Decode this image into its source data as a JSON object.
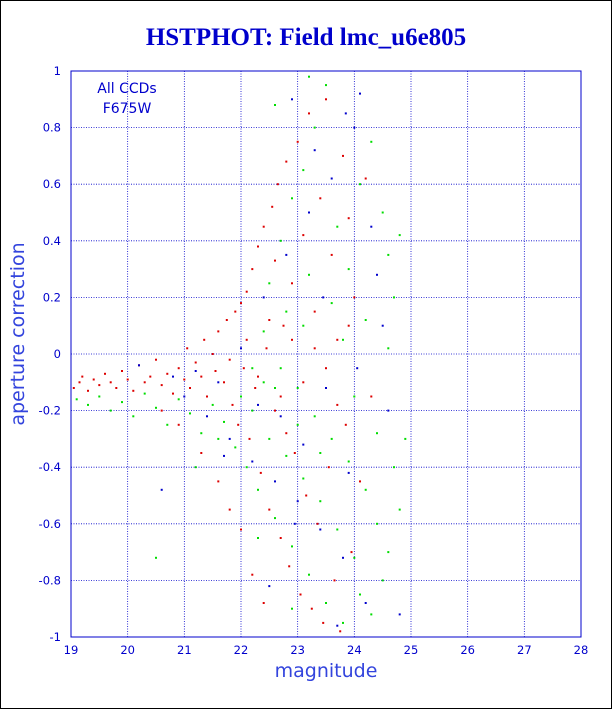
{
  "chart_data": {
    "type": "scatter",
    "title": "HSTPHOT: Field lmc_u6e805",
    "xlabel": "magnitude",
    "ylabel": "aperture correction",
    "xlim": [
      19,
      28
    ],
    "ylim": [
      -1,
      1
    ],
    "xticks": [
      19,
      20,
      21,
      22,
      23,
      24,
      25,
      26,
      27,
      28
    ],
    "yticks": [
      -1,
      -0.8,
      -0.6,
      -0.4,
      -0.2,
      0,
      0.2,
      0.4,
      0.6,
      0.8,
      1
    ],
    "ytick_labels": [
      "-1",
      "-0.8",
      "-0.6",
      "-0.4",
      "-0.2",
      "0",
      "0.2",
      "0.4",
      "0.6",
      "0.8",
      "1"
    ],
    "grid": true,
    "annotations": [
      "All CCDs",
      "F675W"
    ],
    "series": [
      {
        "color": "#dd0000",
        "points": [
          [
            19.05,
            -0.12
          ],
          [
            19.15,
            -0.1
          ],
          [
            19.2,
            -0.08
          ],
          [
            19.3,
            -0.13
          ],
          [
            19.4,
            -0.09
          ],
          [
            19.5,
            -0.11
          ],
          [
            19.6,
            -0.07
          ],
          [
            19.7,
            -0.1
          ],
          [
            19.8,
            -0.12
          ],
          [
            19.9,
            -0.06
          ],
          [
            20.0,
            -0.09
          ],
          [
            20.1,
            -0.13
          ],
          [
            20.2,
            -0.04
          ],
          [
            20.3,
            -0.1
          ],
          [
            20.4,
            -0.08
          ],
          [
            20.5,
            -0.02
          ],
          [
            20.6,
            -0.11
          ],
          [
            20.7,
            -0.07
          ],
          [
            20.8,
            -0.14
          ],
          [
            20.9,
            -0.05
          ],
          [
            21.0,
            -0.09
          ],
          [
            21.05,
            0.02
          ],
          [
            21.1,
            -0.12
          ],
          [
            21.2,
            -0.03
          ],
          [
            21.3,
            -0.08
          ],
          [
            21.35,
            0.05
          ],
          [
            21.4,
            -0.15
          ],
          [
            21.5,
            0.0
          ],
          [
            21.55,
            -0.06
          ],
          [
            21.6,
            0.08
          ],
          [
            21.7,
            -0.1
          ],
          [
            21.75,
            0.12
          ],
          [
            21.8,
            -0.02
          ],
          [
            21.85,
            -0.18
          ],
          [
            21.9,
            0.15
          ],
          [
            21.95,
            -0.25
          ],
          [
            22.0,
            0.18
          ],
          [
            22.05,
            -0.05
          ],
          [
            22.1,
            0.22
          ],
          [
            22.15,
            -0.3
          ],
          [
            22.2,
            0.3
          ],
          [
            22.25,
            -0.12
          ],
          [
            22.3,
            0.38
          ],
          [
            22.35,
            -0.42
          ],
          [
            22.4,
            0.45
          ],
          [
            22.45,
            0.02
          ],
          [
            22.5,
            -0.55
          ],
          [
            22.55,
            0.52
          ],
          [
            22.6,
            -0.2
          ],
          [
            22.65,
            0.6
          ],
          [
            22.7,
            -0.65
          ],
          [
            22.75,
            0.1
          ],
          [
            22.8,
            0.68
          ],
          [
            22.85,
            -0.75
          ],
          [
            22.9,
            0.25
          ],
          [
            22.95,
            -0.35
          ],
          [
            23.0,
            0.75
          ],
          [
            23.05,
            -0.85
          ],
          [
            23.1,
            0.42
          ],
          [
            23.15,
            -0.5
          ],
          [
            23.2,
            0.85
          ],
          [
            23.25,
            -0.9
          ],
          [
            23.3,
            0.15
          ],
          [
            23.35,
            -0.6
          ],
          [
            23.4,
            0.55
          ],
          [
            23.45,
            -0.95
          ],
          [
            23.5,
            0.9
          ],
          [
            23.55,
            -0.4
          ],
          [
            23.6,
            0.35
          ],
          [
            23.65,
            -0.8
          ],
          [
            23.7,
            0.05
          ],
          [
            23.75,
            -0.98
          ],
          [
            23.8,
            0.7
          ],
          [
            23.85,
            -0.25
          ],
          [
            23.9,
            0.48
          ],
          [
            23.95,
            -0.7
          ],
          [
            24.0,
            0.2
          ],
          [
            24.1,
            -0.45
          ],
          [
            24.2,
            0.62
          ],
          [
            24.3,
            -0.15
          ],
          [
            20.6,
            -0.2
          ],
          [
            20.9,
            -0.25
          ],
          [
            21.3,
            -0.35
          ],
          [
            21.6,
            -0.45
          ],
          [
            21.8,
            -0.55
          ],
          [
            22.0,
            -0.62
          ],
          [
            22.2,
            -0.78
          ],
          [
            22.4,
            -0.88
          ],
          [
            22.6,
            0.33
          ],
          [
            22.8,
            -0.28
          ],
          [
            22.1,
            0.05
          ],
          [
            22.3,
            -0.08
          ],
          [
            22.5,
            0.12
          ],
          [
            22.7,
            -0.15
          ],
          [
            22.9,
            0.05
          ],
          [
            23.1,
            -0.1
          ],
          [
            23.3,
            0.02
          ],
          [
            23.5,
            -0.05
          ],
          [
            23.7,
            -0.18
          ],
          [
            23.9,
            0.1
          ]
        ]
      },
      {
        "color": "#00dd00",
        "points": [
          [
            19.1,
            -0.16
          ],
          [
            19.3,
            -0.18
          ],
          [
            19.5,
            -0.15
          ],
          [
            19.7,
            -0.2
          ],
          [
            19.9,
            -0.17
          ],
          [
            20.1,
            -0.22
          ],
          [
            20.3,
            -0.14
          ],
          [
            20.5,
            -0.19
          ],
          [
            20.7,
            -0.25
          ],
          [
            20.9,
            -0.16
          ],
          [
            21.1,
            -0.21
          ],
          [
            21.3,
            -0.28
          ],
          [
            21.5,
            -0.18
          ],
          [
            21.7,
            -0.24
          ],
          [
            21.9,
            -0.33
          ],
          [
            22.0,
            -0.15
          ],
          [
            22.1,
            -0.4
          ],
          [
            22.2,
            -0.2
          ],
          [
            22.3,
            -0.48
          ],
          [
            22.4,
            -0.1
          ],
          [
            22.5,
            -0.3
          ],
          [
            22.6,
            -0.58
          ],
          [
            22.7,
            -0.05
          ],
          [
            22.8,
            -0.36
          ],
          [
            22.9,
            -0.68
          ],
          [
            23.0,
            -0.12
          ],
          [
            23.1,
            -0.44
          ],
          [
            23.2,
            -0.78
          ],
          [
            23.3,
            -0.22
          ],
          [
            23.4,
            -0.52
          ],
          [
            23.5,
            -0.88
          ],
          [
            23.6,
            -0.3
          ],
          [
            23.7,
            -0.62
          ],
          [
            23.8,
            -0.95
          ],
          [
            23.9,
            -0.38
          ],
          [
            24.0,
            -0.72
          ],
          [
            24.1,
            -0.85
          ],
          [
            24.2,
            -0.48
          ],
          [
            24.3,
            -0.92
          ],
          [
            24.4,
            -0.6
          ],
          [
            24.5,
            -0.8
          ],
          [
            24.6,
            -0.7
          ],
          [
            24.7,
            -0.4
          ],
          [
            24.8,
            -0.55
          ],
          [
            22.5,
            0.25
          ],
          [
            22.7,
            0.4
          ],
          [
            22.9,
            0.55
          ],
          [
            23.1,
            0.65
          ],
          [
            23.3,
            0.8
          ],
          [
            23.5,
            0.95
          ],
          [
            23.7,
            0.45
          ],
          [
            23.9,
            0.3
          ],
          [
            24.1,
            0.6
          ],
          [
            24.3,
            0.75
          ],
          [
            24.5,
            0.5
          ],
          [
            24.6,
            0.35
          ],
          [
            24.7,
            0.2
          ],
          [
            24.8,
            0.42
          ],
          [
            22.6,
            0.88
          ],
          [
            23.2,
            0.98
          ],
          [
            22.2,
            -0.05
          ],
          [
            22.4,
            0.08
          ],
          [
            22.6,
            -0.12
          ],
          [
            22.8,
            0.15
          ],
          [
            23.0,
            -0.25
          ],
          [
            23.2,
            0.28
          ],
          [
            23.4,
            -0.35
          ],
          [
            23.6,
            0.18
          ],
          [
            23.8,
            0.05
          ],
          [
            24.0,
            -0.15
          ],
          [
            24.2,
            0.12
          ],
          [
            24.4,
            -0.28
          ],
          [
            24.6,
            0.02
          ],
          [
            20.5,
            -0.72
          ],
          [
            21.2,
            -0.4
          ],
          [
            21.6,
            -0.3
          ],
          [
            22.3,
            -0.65
          ],
          [
            22.9,
            -0.9
          ],
          [
            23.1,
            0.1
          ],
          [
            24.9,
            -0.3
          ]
        ]
      },
      {
        "color": "#0000cc",
        "points": [
          [
            20.2,
            -0.04
          ],
          [
            20.8,
            -0.08
          ],
          [
            21.0,
            -0.15
          ],
          [
            21.2,
            -0.06
          ],
          [
            21.4,
            -0.22
          ],
          [
            21.6,
            -0.1
          ],
          [
            21.8,
            -0.3
          ],
          [
            22.0,
            0.02
          ],
          [
            22.2,
            -0.38
          ],
          [
            22.4,
            0.2
          ],
          [
            22.6,
            -0.45
          ],
          [
            22.8,
            0.35
          ],
          [
            23.0,
            -0.52
          ],
          [
            23.2,
            0.5
          ],
          [
            23.4,
            -0.62
          ],
          [
            23.6,
            0.62
          ],
          [
            23.8,
            -0.72
          ],
          [
            24.0,
            0.8
          ],
          [
            24.2,
            -0.88
          ],
          [
            24.4,
            0.28
          ],
          [
            22.3,
            -0.18
          ],
          [
            22.7,
            -0.22
          ],
          [
            23.1,
            -0.32
          ],
          [
            23.5,
            -0.12
          ],
          [
            23.9,
            -0.42
          ],
          [
            24.3,
            0.45
          ],
          [
            24.5,
            0.1
          ],
          [
            23.3,
            0.72
          ],
          [
            22.9,
            0.9
          ],
          [
            24.1,
            0.92
          ],
          [
            20.6,
            -0.48
          ],
          [
            21.7,
            -0.36
          ],
          [
            22.5,
            -0.82
          ],
          [
            23.7,
            -0.96
          ],
          [
            24.6,
            -0.2
          ],
          [
            24.8,
            -0.92
          ],
          [
            23.85,
            0.85
          ],
          [
            22.95,
            -0.6
          ],
          [
            23.45,
            0.2
          ],
          [
            24.05,
            -0.05
          ]
        ]
      }
    ]
  }
}
